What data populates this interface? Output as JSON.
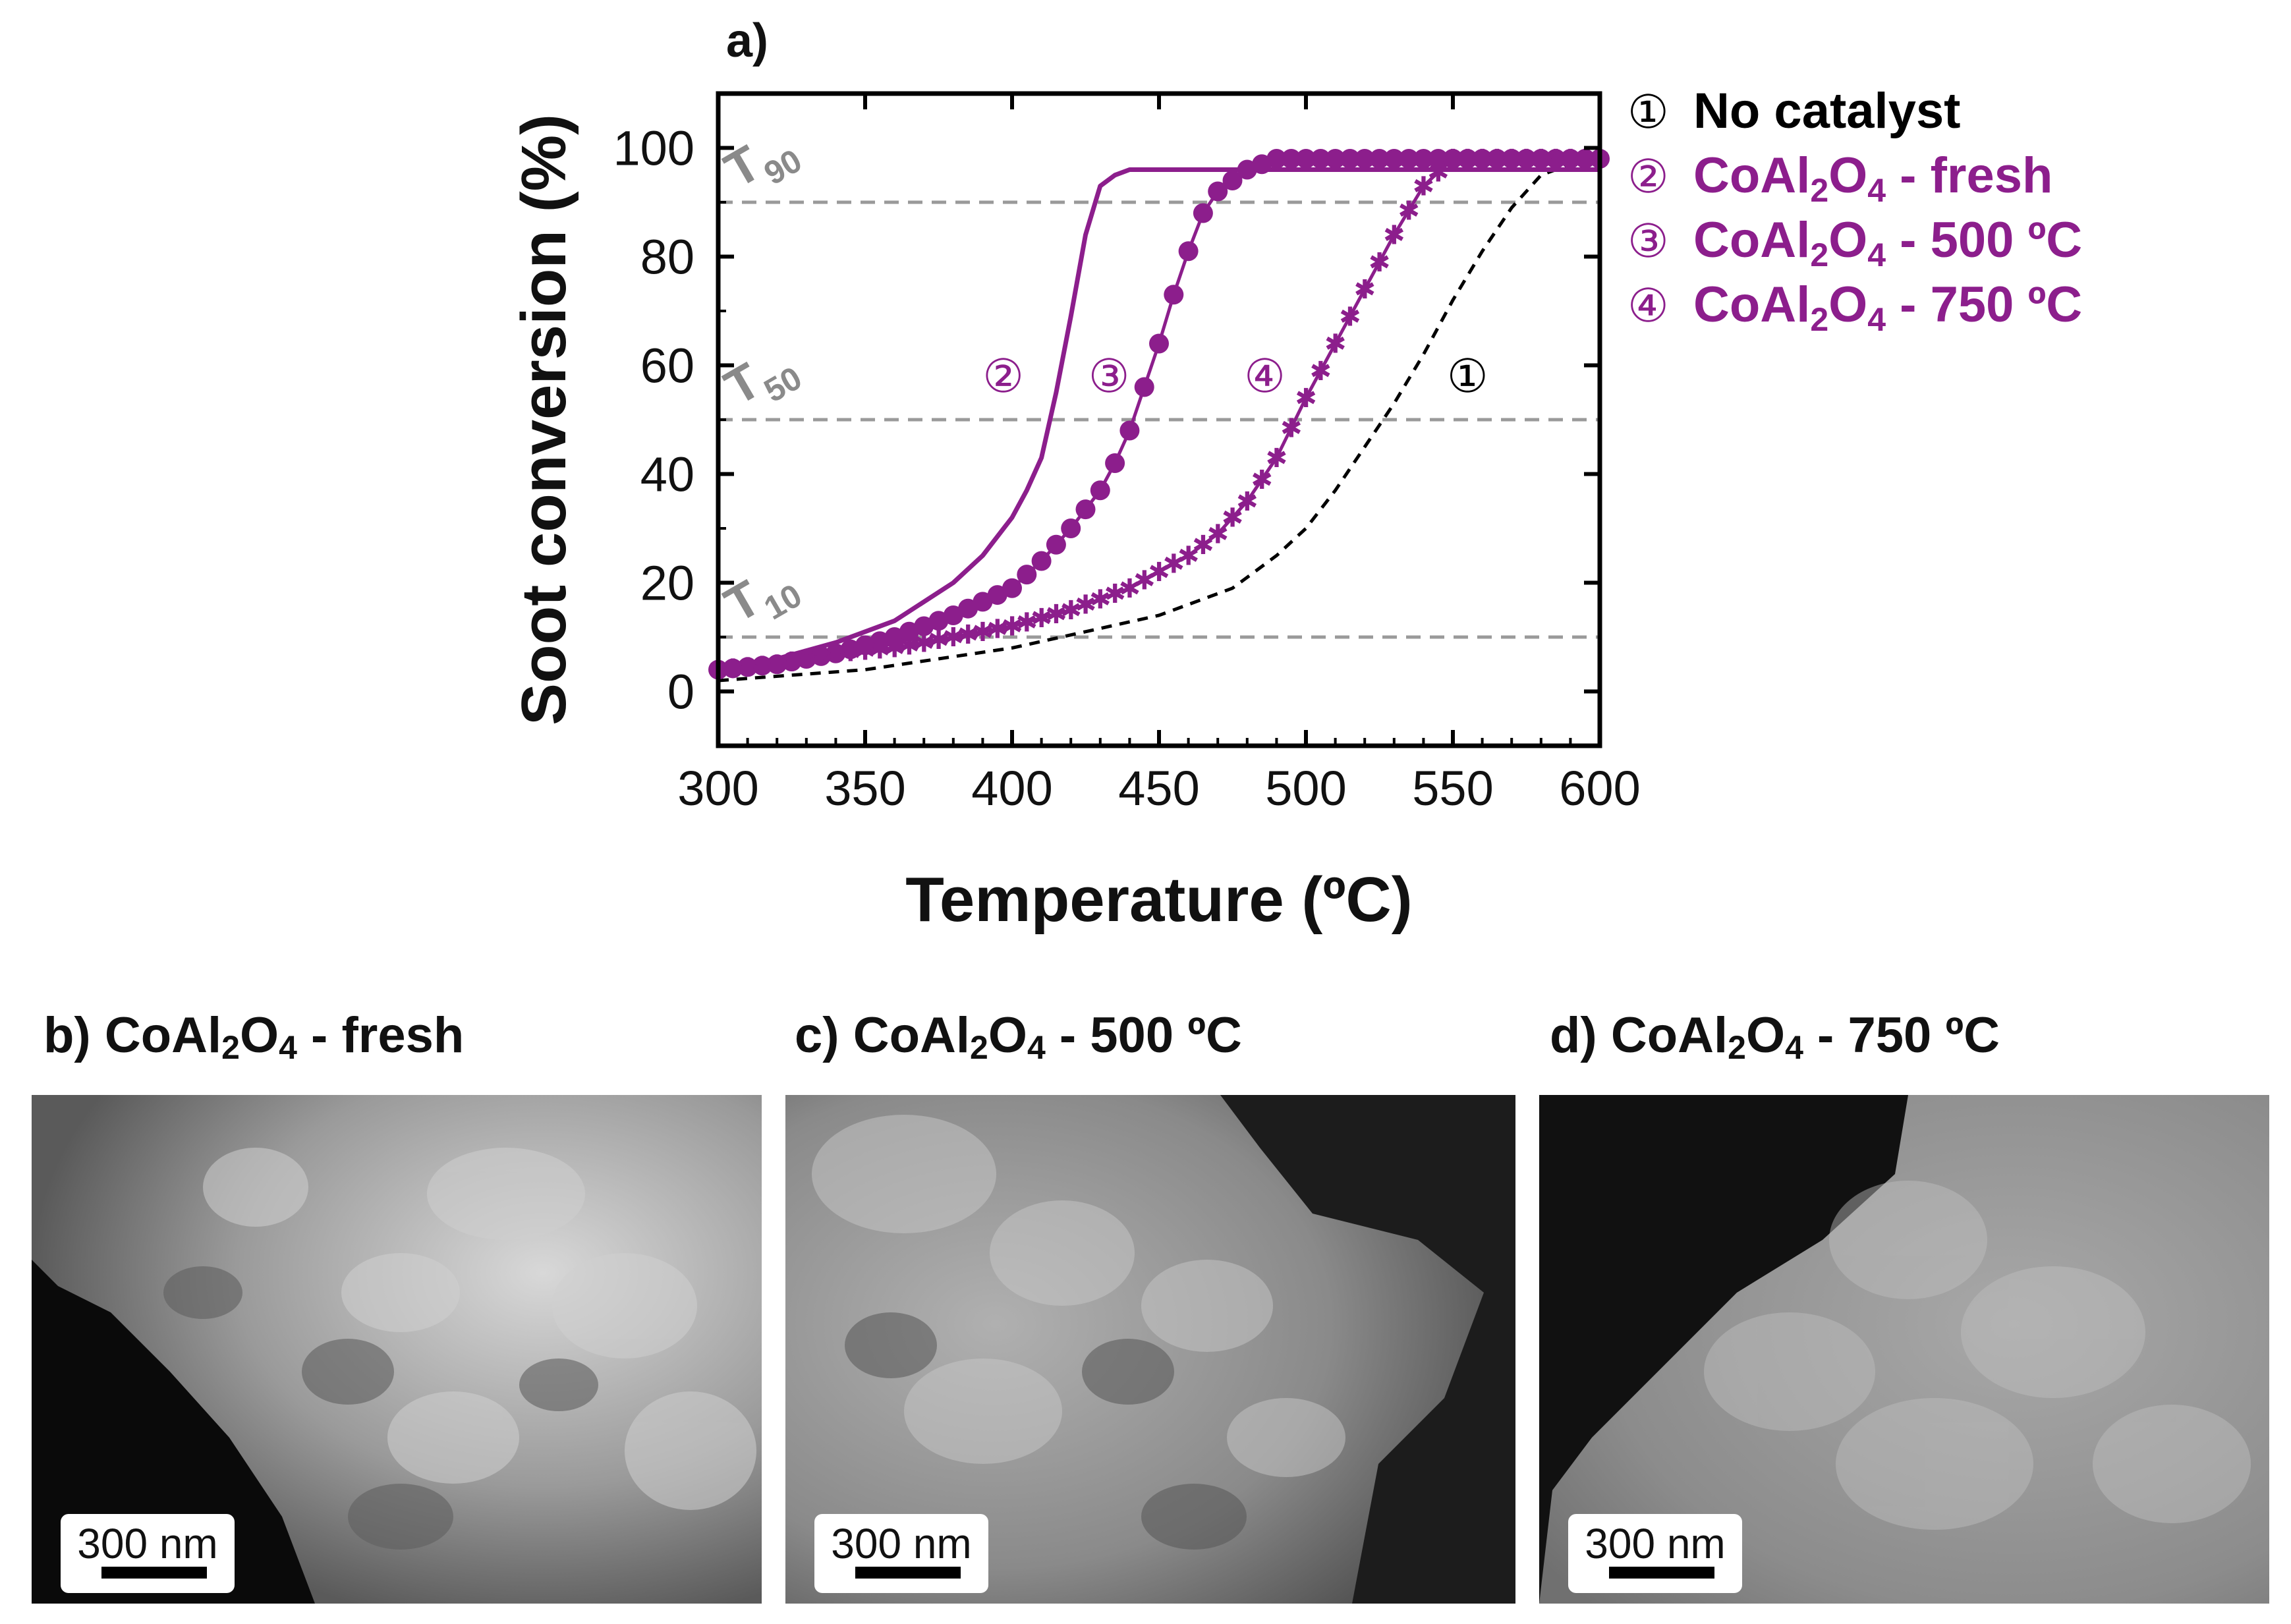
{
  "chart_data": {
    "type": "line",
    "panel_label": "a)",
    "xlabel": "Temperature (ºC)",
    "ylabel": "Soot conversion (%)",
    "xlim": [
      300,
      600
    ],
    "ylim": [
      -10,
      110
    ],
    "xticks": [
      "300",
      "350",
      "400",
      "450",
      "500",
      "550",
      "600"
    ],
    "yticks": [
      "0",
      "20",
      "40",
      "60",
      "80",
      "100"
    ],
    "reference_lines": [
      {
        "label": "T",
        "sub": "10",
        "y": 10
      },
      {
        "label": "T",
        "sub": "50",
        "y": 50
      },
      {
        "label": "T",
        "sub": "90",
        "y": 90
      }
    ],
    "series": [
      {
        "name": "No catalyst",
        "marker": "①",
        "style": "dashed",
        "color": "#000000",
        "label_at": [
          555,
          58
        ],
        "x": [
          300,
          325,
          350,
          375,
          400,
          425,
          450,
          475,
          490,
          500,
          510,
          520,
          530,
          540,
          550,
          560,
          570,
          580,
          590,
          600
        ],
        "y": [
          2,
          3,
          4,
          6,
          8,
          11,
          14,
          19,
          25,
          30,
          37,
          45,
          53,
          62,
          72,
          81,
          89,
          95,
          97,
          98
        ]
      },
      {
        "name": "CoAl2O4 - fresh",
        "marker": "②",
        "style": "solid",
        "color": "#8c1e8c",
        "label_at": [
          397,
          58
        ],
        "x": [
          300,
          320,
          340,
          360,
          380,
          390,
          400,
          405,
          410,
          415,
          420,
          425,
          430,
          435,
          440,
          450,
          500,
          550,
          600
        ],
        "y": [
          4,
          6,
          9,
          13,
          20,
          25,
          32,
          37,
          43,
          55,
          69,
          84,
          93,
          95,
          96,
          96,
          96,
          96,
          96
        ]
      },
      {
        "name": "CoAl2O4 - 500 ºC",
        "marker": "③",
        "style": "circles",
        "color": "#8c1e8c",
        "label_at": [
          433,
          58
        ],
        "x": [
          300,
          320,
          340,
          360,
          380,
          400,
          410,
          420,
          430,
          435,
          440,
          445,
          450,
          455,
          460,
          465,
          470,
          480,
          490,
          500,
          550,
          600
        ],
        "y": [
          4,
          5,
          7,
          10,
          14,
          19,
          24,
          30,
          37,
          42,
          48,
          56,
          64,
          73,
          81,
          88,
          92,
          96,
          98,
          98,
          98,
          98
        ]
      },
      {
        "name": "CoAl2O4 - 750 ºC",
        "marker": "④",
        "style": "stars",
        "color": "#8c1e8c",
        "label_at": [
          486,
          58
        ],
        "x": [
          300,
          320,
          340,
          360,
          380,
          400,
          420,
          440,
          460,
          470,
          480,
          490,
          500,
          510,
          520,
          530,
          540,
          550,
          560,
          600
        ],
        "y": [
          4,
          5,
          7,
          8,
          10,
          12,
          15,
          19,
          25,
          29,
          35,
          43,
          54,
          64,
          74,
          84,
          93,
          98,
          98,
          98
        ]
      }
    ]
  },
  "legend": [
    {
      "marker": "①",
      "text": "No catalyst",
      "formula": false,
      "color": "#000000"
    },
    {
      "marker": "②",
      "text": "CoAl",
      "sub1": "2",
      "mid": "O",
      "sub2": "4",
      "tail": " - fresh",
      "formula": true,
      "color": "#8c1e8c"
    },
    {
      "marker": "③",
      "text": "CoAl",
      "sub1": "2",
      "mid": "O",
      "sub2": "4",
      "tail": " - 500 ºC",
      "formula": true,
      "color": "#8c1e8c"
    },
    {
      "marker": "④",
      "text": "CoAl",
      "sub1": "2",
      "mid": "O",
      "sub2": "4",
      "tail": " - 750 ºC",
      "formula": true,
      "color": "#8c1e8c"
    }
  ],
  "panels": [
    {
      "prefix": "b) CoAl",
      "sub1": "2",
      "mid": "O",
      "sub2": "4",
      "tail": " - fresh",
      "scale": "300 nm"
    },
    {
      "prefix": "c) CoAl",
      "sub1": "2",
      "mid": "O",
      "sub2": "4",
      "tail": " - 500 ºC",
      "scale": "300 nm"
    },
    {
      "prefix": "d) CoAl",
      "sub1": "2",
      "mid": "O",
      "sub2": "4",
      "tail": " - 750 ºC",
      "scale": "300 nm"
    }
  ]
}
